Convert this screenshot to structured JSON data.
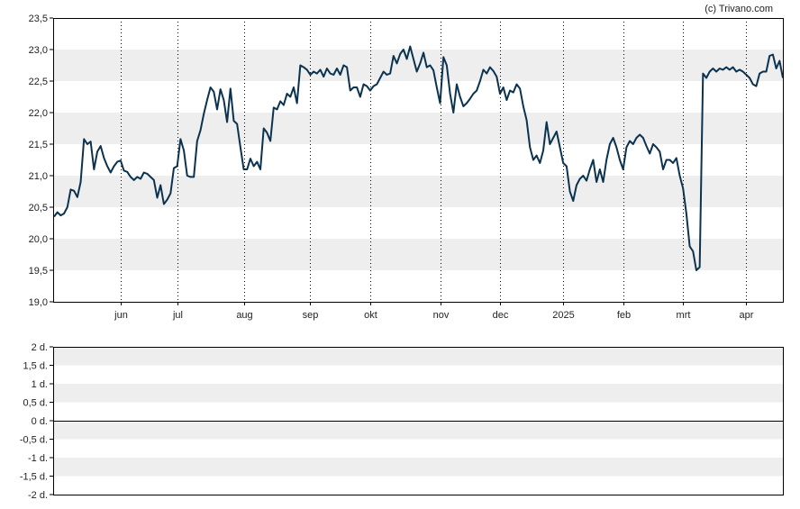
{
  "credit": "(c) Trivano.com",
  "colors": {
    "line": "#0b3350",
    "band": "#eeeeee",
    "axis": "#000000",
    "grid": "#000000"
  },
  "chart_data": [
    {
      "type": "line",
      "grid": "vertical dotted month lines; alternating horizontal bands",
      "ylim": [
        19.0,
        23.5
      ],
      "y_ticks": [
        "23,5",
        "23,0",
        "22,5",
        "22,0",
        "21,5",
        "21,0",
        "20,5",
        "20,0",
        "19,5",
        "19,0"
      ],
      "y_tick_values": [
        23.5,
        23.0,
        22.5,
        22.0,
        21.5,
        21.0,
        20.5,
        20.0,
        19.5,
        19.0
      ],
      "x_ticks": [
        "jun",
        "jul",
        "aug",
        "sep",
        "okt",
        "nov",
        "dec",
        "2025",
        "feb",
        "mrt",
        "apr"
      ],
      "x_tick_index": [
        20,
        37,
        57,
        77,
        95,
        116,
        134,
        153,
        171,
        189,
        208
      ],
      "series": [
        {
          "values": [
            20.35,
            20.42,
            20.37,
            20.4,
            20.5,
            20.78,
            20.76,
            20.66,
            20.9,
            21.58,
            21.5,
            21.54,
            21.1,
            21.38,
            21.47,
            21.28,
            21.15,
            21.05,
            21.15,
            21.22,
            21.24,
            21.08,
            21.06,
            20.98,
            20.93,
            20.98,
            20.95,
            21.05,
            21.03,
            20.98,
            20.93,
            20.65,
            20.85,
            20.55,
            20.62,
            20.72,
            21.12,
            21.15,
            21.58,
            21.4,
            21.0,
            20.98,
            20.98,
            21.55,
            21.72,
            21.98,
            22.2,
            22.4,
            22.33,
            22.05,
            22.37,
            22.2,
            21.85,
            22.38,
            21.87,
            21.82,
            21.45,
            21.1,
            21.1,
            21.27,
            21.15,
            21.22,
            21.1,
            21.75,
            21.68,
            21.55,
            22.08,
            22.05,
            22.18,
            22.12,
            22.3,
            22.25,
            22.4,
            22.15,
            22.75,
            22.72,
            22.68,
            22.6,
            22.65,
            22.62,
            22.68,
            22.57,
            22.7,
            22.62,
            22.6,
            22.7,
            22.6,
            22.75,
            22.72,
            22.35,
            22.4,
            22.4,
            22.25,
            22.45,
            22.42,
            22.35,
            22.42,
            22.45,
            22.55,
            22.65,
            22.6,
            22.62,
            22.9,
            22.78,
            22.93,
            23.0,
            22.85,
            23.05,
            22.85,
            22.65,
            22.78,
            22.95,
            22.72,
            22.75,
            22.67,
            22.4,
            22.15,
            22.88,
            22.75,
            22.3,
            22.0,
            22.45,
            22.25,
            22.1,
            22.15,
            22.22,
            22.3,
            22.35,
            22.5,
            22.68,
            22.62,
            22.72,
            22.66,
            22.57,
            22.3,
            22.4,
            22.2,
            22.35,
            22.32,
            22.45,
            22.38,
            22.1,
            21.88,
            21.45,
            21.25,
            21.32,
            21.2,
            21.4,
            21.85,
            21.5,
            21.6,
            21.7,
            21.45,
            21.2,
            21.15,
            20.75,
            20.6,
            20.85,
            20.95,
            21.0,
            20.92,
            21.1,
            21.25,
            20.9,
            21.1,
            20.9,
            21.25,
            21.5,
            21.6,
            21.45,
            21.25,
            21.1,
            21.45,
            21.55,
            21.5,
            21.6,
            21.65,
            21.6,
            21.47,
            21.35,
            21.5,
            21.45,
            21.38,
            21.1,
            21.25,
            21.25,
            21.2,
            21.28,
            21.0,
            20.8,
            20.4,
            19.88,
            19.8,
            19.5,
            19.55,
            22.62,
            22.55,
            22.65,
            22.7,
            22.65,
            22.7,
            22.68,
            22.72,
            22.68,
            22.72,
            22.65,
            22.68,
            22.65,
            22.6,
            22.55,
            22.45,
            22.42,
            22.62,
            22.65,
            22.65,
            22.9,
            22.92,
            22.7,
            22.82,
            22.55
          ]
        }
      ]
    },
    {
      "type": "line",
      "ylim": [
        -2,
        2
      ],
      "y_ticks": [
        "2 d.",
        "1,5 d.",
        "1 d.",
        "0,5 d.",
        "0 d.",
        "-0,5 d.",
        "-1 d.",
        "-1,5 d.",
        "-2 d."
      ],
      "y_tick_values": [
        2,
        1.5,
        1,
        0.5,
        0,
        -0.5,
        -1,
        -1.5,
        -2
      ],
      "zero_line": 0,
      "series": []
    }
  ]
}
